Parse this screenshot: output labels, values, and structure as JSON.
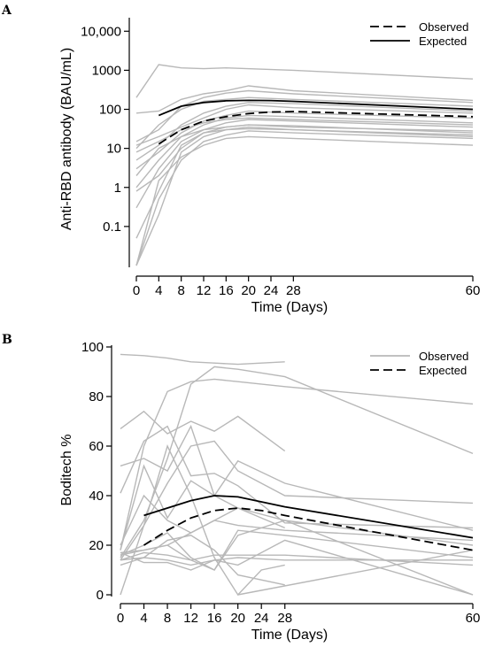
{
  "chart_data": [
    {
      "panel_label": "A",
      "type": "line",
      "xlabel": "Time (Days)",
      "ylabel": "Anti-RBD antibody (BAU/mL)",
      "yscale": "log",
      "ylim": [
        0.01,
        20000
      ],
      "xlim": [
        0,
        60
      ],
      "x_ticks": [
        0,
        4,
        8,
        12,
        16,
        20,
        24,
        28,
        60
      ],
      "x_tick_labels": [
        "0",
        "4",
        "8",
        "12",
        "16",
        "20",
        "24",
        "28",
        "60"
      ],
      "y_ticks": [
        0.1,
        1,
        10,
        100,
        1000,
        10000
      ],
      "y_tick_labels": [
        "0.1",
        "1",
        "10",
        "100",
        "1000",
        "10,000"
      ],
      "legend_position": "top-right",
      "legend": [
        {
          "label": "Observed",
          "style": "dashed"
        },
        {
          "label": "Expected",
          "style": "solid"
        }
      ],
      "series": [
        {
          "name": "Observed",
          "style": "dashed",
          "x": [
            4,
            8,
            12,
            16,
            20,
            24,
            28,
            60
          ],
          "y": [
            13,
            30,
            50,
            65,
            78,
            85,
            88,
            65
          ]
        },
        {
          "name": "Expected",
          "style": "solid",
          "x": [
            4,
            8,
            12,
            16,
            20,
            24,
            28,
            60
          ],
          "y": [
            70,
            120,
            150,
            165,
            170,
            168,
            160,
            100
          ]
        }
      ],
      "individual_lines": [
        {
          "x": [
            0,
            4,
            8,
            12,
            16,
            28,
            60
          ],
          "y": [
            200,
            1400,
            1150,
            1100,
            1150,
            1000,
            600
          ]
        },
        {
          "x": [
            0,
            4,
            8,
            12,
            16,
            20,
            28,
            60
          ],
          "y": [
            80,
            90,
            180,
            250,
            300,
            400,
            300,
            170
          ]
        },
        {
          "x": [
            0,
            4,
            8,
            12,
            16,
            20,
            28,
            60
          ],
          "y": [
            15,
            30,
            120,
            200,
            260,
            300,
            250,
            150
          ]
        },
        {
          "x": [
            0,
            4,
            8,
            12,
            16,
            20,
            28,
            60
          ],
          "y": [
            10,
            40,
            100,
            160,
            180,
            200,
            180,
            120
          ]
        },
        {
          "x": [
            0,
            4,
            8,
            12,
            16,
            20,
            28,
            60
          ],
          "y": [
            5,
            12,
            40,
            80,
            120,
            150,
            140,
            90
          ]
        },
        {
          "x": [
            0,
            4,
            8,
            12,
            16,
            20,
            28,
            60
          ],
          "y": [
            3,
            8,
            25,
            50,
            70,
            90,
            80,
            60
          ]
        },
        {
          "x": [
            0,
            4,
            8,
            12,
            16,
            20,
            28,
            60
          ],
          "y": [
            1,
            5,
            20,
            40,
            60,
            70,
            65,
            45
          ]
        },
        {
          "x": [
            0,
            4,
            8,
            12,
            16,
            20,
            28,
            60
          ],
          "y": [
            0.3,
            3,
            15,
            30,
            45,
            55,
            50,
            35
          ]
        },
        {
          "x": [
            0,
            4,
            8,
            12,
            16,
            20,
            28,
            60
          ],
          "y": [
            0.8,
            2,
            10,
            25,
            35,
            40,
            38,
            25
          ]
        },
        {
          "x": [
            0,
            4,
            8,
            12,
            16,
            20,
            28,
            60
          ],
          "y": [
            0.01,
            0.2,
            8,
            20,
            30,
            35,
            30,
            20
          ]
        },
        {
          "x": [
            0,
            4,
            8,
            12,
            16,
            20,
            28,
            60
          ],
          "y": [
            0.01,
            0.5,
            5,
            15,
            22,
            28,
            25,
            18
          ]
        },
        {
          "x": [
            0,
            4,
            8,
            12,
            16,
            20,
            28,
            60
          ],
          "y": [
            0.01,
            1.5,
            6,
            12,
            18,
            20,
            18,
            12
          ]
        },
        {
          "x": [
            0,
            4,
            8,
            12,
            16,
            20,
            28,
            60
          ],
          "y": [
            12,
            20,
            35,
            60,
            100,
            130,
            110,
            80
          ]
        },
        {
          "x": [
            0,
            4,
            8,
            12,
            16,
            20,
            28,
            60
          ],
          "y": [
            8,
            15,
            30,
            45,
            55,
            60,
            55,
            40
          ]
        },
        {
          "x": [
            0,
            4,
            8,
            12,
            16,
            20,
            28,
            60
          ],
          "y": [
            2,
            10,
            20,
            30,
            35,
            40,
            35,
            28
          ]
        },
        {
          "x": [
            0,
            4,
            8,
            12,
            16,
            20,
            28,
            60
          ],
          "y": [
            0.05,
            0.8,
            12,
            25,
            30,
            32,
            30,
            22
          ]
        }
      ]
    },
    {
      "panel_label": "B",
      "type": "line",
      "xlabel": "Time (Days)",
      "ylabel": "Boditech %",
      "ylim": [
        0,
        100
      ],
      "xlim": [
        0,
        60
      ],
      "x_ticks": [
        0,
        4,
        8,
        12,
        16,
        20,
        24,
        28,
        60
      ],
      "x_tick_labels": [
        "0",
        "4",
        "8",
        "12",
        "16",
        "20",
        "24",
        "28",
        "60"
      ],
      "y_ticks": [
        0,
        20,
        40,
        60,
        80,
        100
      ],
      "y_tick_labels": [
        "0",
        "20",
        "40",
        "60",
        "80",
        "100"
      ],
      "legend_position": "top-right",
      "legend": [
        {
          "label": "Observed",
          "style": "solid-gray"
        },
        {
          "label": "Expected",
          "style": "dashed"
        }
      ],
      "series": [
        {
          "name": "Expected",
          "style": "dashed",
          "x": [
            4,
            8,
            12,
            16,
            20,
            24,
            28,
            60
          ],
          "y": [
            20,
            26,
            31,
            34,
            35,
            34,
            32,
            18
          ]
        },
        {
          "style": "solid",
          "x": [
            4,
            8,
            12,
            16,
            20,
            24,
            28,
            60
          ],
          "y": [
            32,
            35,
            38,
            40,
            39.5,
            37.5,
            35.5,
            23
          ]
        }
      ],
      "individual_lines": [
        {
          "x": [
            0,
            4,
            8,
            12,
            16,
            20,
            24,
            28
          ],
          "y": [
            97,
            96.5,
            95.5,
            94,
            93.5,
            93,
            93.5,
            94
          ]
        },
        {
          "x": [
            0,
            4,
            8,
            12,
            16,
            20,
            28,
            60
          ],
          "y": [
            18,
            60,
            82,
            86,
            87,
            86,
            84,
            77
          ]
        },
        {
          "x": [
            0,
            4,
            8,
            12,
            16,
            20,
            28,
            60
          ],
          "y": [
            15,
            30,
            55,
            85,
            92,
            91,
            88,
            57
          ]
        },
        {
          "x": [
            0,
            4,
            8,
            12,
            16,
            20,
            28
          ],
          "y": [
            67,
            74,
            65,
            70,
            66,
            72,
            58
          ]
        },
        {
          "x": [
            0,
            4,
            8,
            12,
            16,
            20,
            28
          ],
          "y": [
            52,
            55,
            50,
            68,
            40,
            35,
            27
          ]
        },
        {
          "x": [
            0,
            4,
            8,
            12,
            16,
            20,
            28,
            60
          ],
          "y": [
            41,
            62,
            68,
            48,
            49,
            44,
            29,
            27
          ]
        },
        {
          "x": [
            0,
            4,
            8,
            12,
            16,
            20,
            28,
            60
          ],
          "y": [
            18,
            52,
            31,
            46,
            40,
            54,
            45,
            26
          ]
        },
        {
          "x": [
            0,
            4,
            8,
            12,
            16,
            20,
            28,
            60
          ],
          "y": [
            14,
            28,
            45,
            60,
            62,
            50,
            40,
            37
          ]
        },
        {
          "x": [
            0,
            4,
            8,
            12,
            16,
            20,
            28,
            60
          ],
          "y": [
            20,
            40,
            30,
            25,
            30,
            35,
            30,
            20
          ]
        },
        {
          "x": [
            0,
            4,
            8,
            12,
            16,
            20,
            28,
            60
          ],
          "y": [
            16,
            20,
            25,
            15,
            10,
            26,
            24,
            15
          ]
        },
        {
          "x": [
            0,
            4,
            8,
            12,
            16,
            20,
            28,
            60
          ],
          "y": [
            14,
            17,
            16,
            14,
            16,
            16,
            16,
            12
          ]
        },
        {
          "x": [
            0,
            4,
            8,
            12,
            16,
            20,
            28
          ],
          "y": [
            12,
            15,
            22,
            24,
            18,
            8,
            4
          ]
        },
        {
          "x": [
            0,
            4,
            8,
            12,
            16,
            20,
            28,
            60
          ],
          "y": [
            17,
            13,
            13,
            10,
            14,
            12,
            22,
            0
          ]
        },
        {
          "x": [
            0,
            4,
            8,
            12,
            16,
            20,
            24,
            28
          ],
          "y": [
            0,
            28,
            60,
            40,
            15,
            0,
            10,
            12
          ]
        },
        {
          "x": [
            0,
            4,
            8,
            12,
            16,
            20,
            28,
            60
          ],
          "y": [
            17,
            18,
            20,
            25,
            30,
            28,
            26,
            22
          ]
        },
        {
          "x": [
            0,
            4,
            8,
            12,
            16,
            20,
            28,
            60
          ],
          "y": [
            14,
            15,
            14,
            12,
            14,
            15,
            14,
            14
          ]
        },
        {
          "x": [
            20,
            60
          ],
          "y": [
            0,
            18
          ]
        },
        {
          "x": [
            0,
            4,
            8,
            12,
            16,
            20,
            28,
            60
          ],
          "y": [
            16,
            18,
            20,
            14,
            10,
            24,
            30,
            0
          ]
        }
      ]
    }
  ]
}
